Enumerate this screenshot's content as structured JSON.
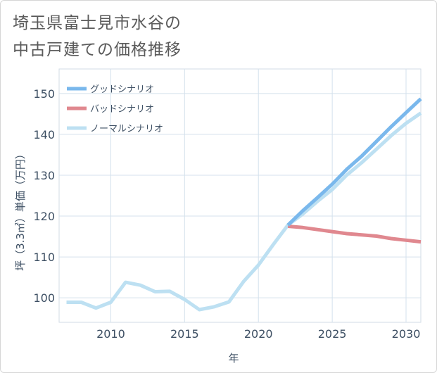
{
  "page": {
    "title_line1": "埼玉県富士見市水谷の",
    "title_line2": "中古戸建ての価格推移"
  },
  "chart_data": {
    "type": "line",
    "title": "埼玉県富士見市水谷の中古戸建ての価格推移",
    "xlabel": "年",
    "ylabel": "坪（3.3㎡）単価（万円）",
    "xlim": [
      2006.5,
      2031
    ],
    "ylim": [
      94,
      156
    ],
    "x_ticks": [
      2010,
      2015,
      2020,
      2025,
      2030
    ],
    "y_ticks": [
      100,
      110,
      120,
      130,
      140,
      150
    ],
    "grid": true,
    "legend_position": "top-left",
    "series": [
      {
        "name": "グッドシナリオ",
        "color": "#7ab8ec",
        "x": [
          2022,
          2023,
          2024,
          2025,
          2026,
          2027,
          2028,
          2029,
          2030,
          2031
        ],
        "y": [
          117.8,
          121.3,
          124.5,
          127.8,
          131.5,
          134.7,
          138.3,
          141.9,
          145.3,
          148.7
        ]
      },
      {
        "name": "バッドシナリオ",
        "color": "#e0888f",
        "x": [
          2022,
          2023,
          2024,
          2025,
          2026,
          2027,
          2028,
          2029,
          2030,
          2031
        ],
        "y": [
          117.5,
          117.2,
          116.7,
          116.2,
          115.7,
          115.4,
          115.1,
          114.5,
          114.1,
          113.7
        ]
      },
      {
        "name": "ノーマルシナリオ",
        "color": "#bde0f2",
        "x": [
          2007,
          2008,
          2009,
          2010,
          2011,
          2012,
          2013,
          2014,
          2015,
          2016,
          2017,
          2018,
          2019,
          2020,
          2021,
          2022,
          2023,
          2024,
          2025,
          2026,
          2027,
          2028,
          2029,
          2030,
          2031
        ],
        "y": [
          98.9,
          98.9,
          97.5,
          98.9,
          103.8,
          103.1,
          101.5,
          101.6,
          99.6,
          97.1,
          97.8,
          99.0,
          104.0,
          108.0,
          113.0,
          117.8,
          120.5,
          123.6,
          126.5,
          130.1,
          133.1,
          136.4,
          139.7,
          142.7,
          145.2
        ]
      }
    ]
  }
}
